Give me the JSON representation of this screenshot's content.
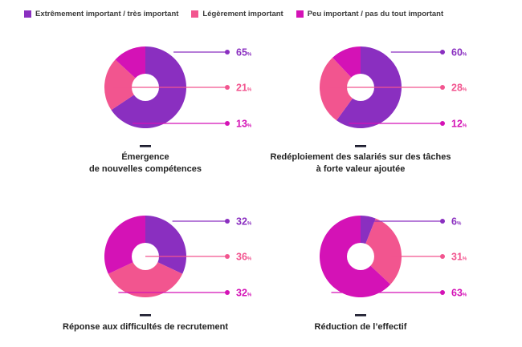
{
  "legend": [
    {
      "label": "Extrêmement important / très important",
      "color": "#8a2fc0"
    },
    {
      "label": "Légèrement important",
      "color": "#f2558f"
    },
    {
      "label": "Peu important / pas du tout important",
      "color": "#d412b6"
    }
  ],
  "chart_data": [
    {
      "type": "pie",
      "title_lines": [
        "Émergence",
        "de nouvelles compétences"
      ],
      "categories": [
        "Extrêmement important / très important",
        "Légèrement important",
        "Peu important / pas du tout important"
      ],
      "values": [
        65,
        21,
        13
      ],
      "value_labels": [
        "65",
        "21",
        "13"
      ],
      "unit": "%"
    },
    {
      "type": "pie",
      "title_lines": [
        "Redéploiement des salariés sur des tâches",
        "à forte valeur ajoutée"
      ],
      "categories": [
        "Extrêmement important / très important",
        "Légèrement important",
        "Peu important / pas du tout important"
      ],
      "values": [
        60,
        28,
        12
      ],
      "value_labels": [
        "60",
        "28",
        "12"
      ],
      "unit": "%"
    },
    {
      "type": "pie",
      "title_lines": [
        "Réponse aux difficultés de recrutement"
      ],
      "categories": [
        "Extrêmement important / très important",
        "Légèrement important",
        "Peu important / pas du tout important"
      ],
      "values": [
        32,
        36,
        32
      ],
      "value_labels": [
        "32",
        "36",
        "32"
      ],
      "unit": "%"
    },
    {
      "type": "pie",
      "title_lines": [
        "Réduction de l’effectif"
      ],
      "categories": [
        "Extrêmement important / très important",
        "Légèrement important",
        "Peu important / pas du tout important"
      ],
      "values": [
        6,
        31,
        63
      ],
      "value_labels": [
        "6",
        "31",
        "63"
      ],
      "unit": "%"
    }
  ]
}
